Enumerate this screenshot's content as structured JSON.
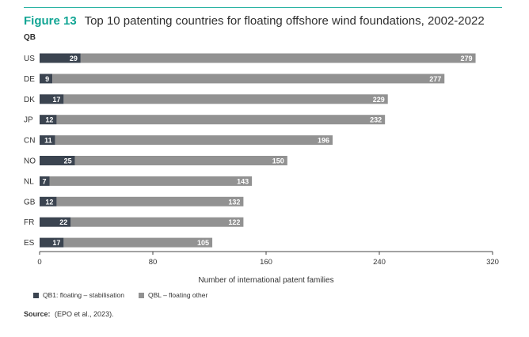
{
  "figure": {
    "label": "Figure 13",
    "title": "Top 10 patenting countries for floating offshore wind foundations, 2002-2022",
    "panel_label": "QB"
  },
  "colors": {
    "accent": "#12a594",
    "series_dark": "#3b4450",
    "series_light": "#929292"
  },
  "chart_data": {
    "type": "bar",
    "orientation": "horizontal",
    "categories": [
      "US",
      "DE",
      "DK",
      "JP",
      "CN",
      "NO",
      "NL",
      "GB",
      "FR",
      "ES"
    ],
    "series": [
      {
        "name": "QB1: floating – stabilisation",
        "values": [
          29,
          9,
          17,
          12,
          11,
          25,
          7,
          12,
          22,
          17
        ]
      },
      {
        "name": "QBL – floating other",
        "values": [
          279,
          277,
          229,
          232,
          196,
          150,
          143,
          132,
          122,
          105
        ]
      }
    ],
    "bar_labels_series2": [
      "279",
      "277",
      "229",
      "232",
      "196",
      "150",
      "143",
      "132",
      "122",
      "105"
    ],
    "xlabel": "Number of international patent families",
    "xlim": [
      0,
      320
    ],
    "xticks": [
      0,
      80,
      160,
      240,
      320
    ],
    "grid": false,
    "legend_position": "bottom-left"
  },
  "legend": {
    "items": [
      {
        "label": "QB1: floating – stabilisation"
      },
      {
        "label": "QBL – floating other"
      }
    ]
  },
  "source": {
    "label": "Source:",
    "text": "(EPO et al., 2023)."
  }
}
